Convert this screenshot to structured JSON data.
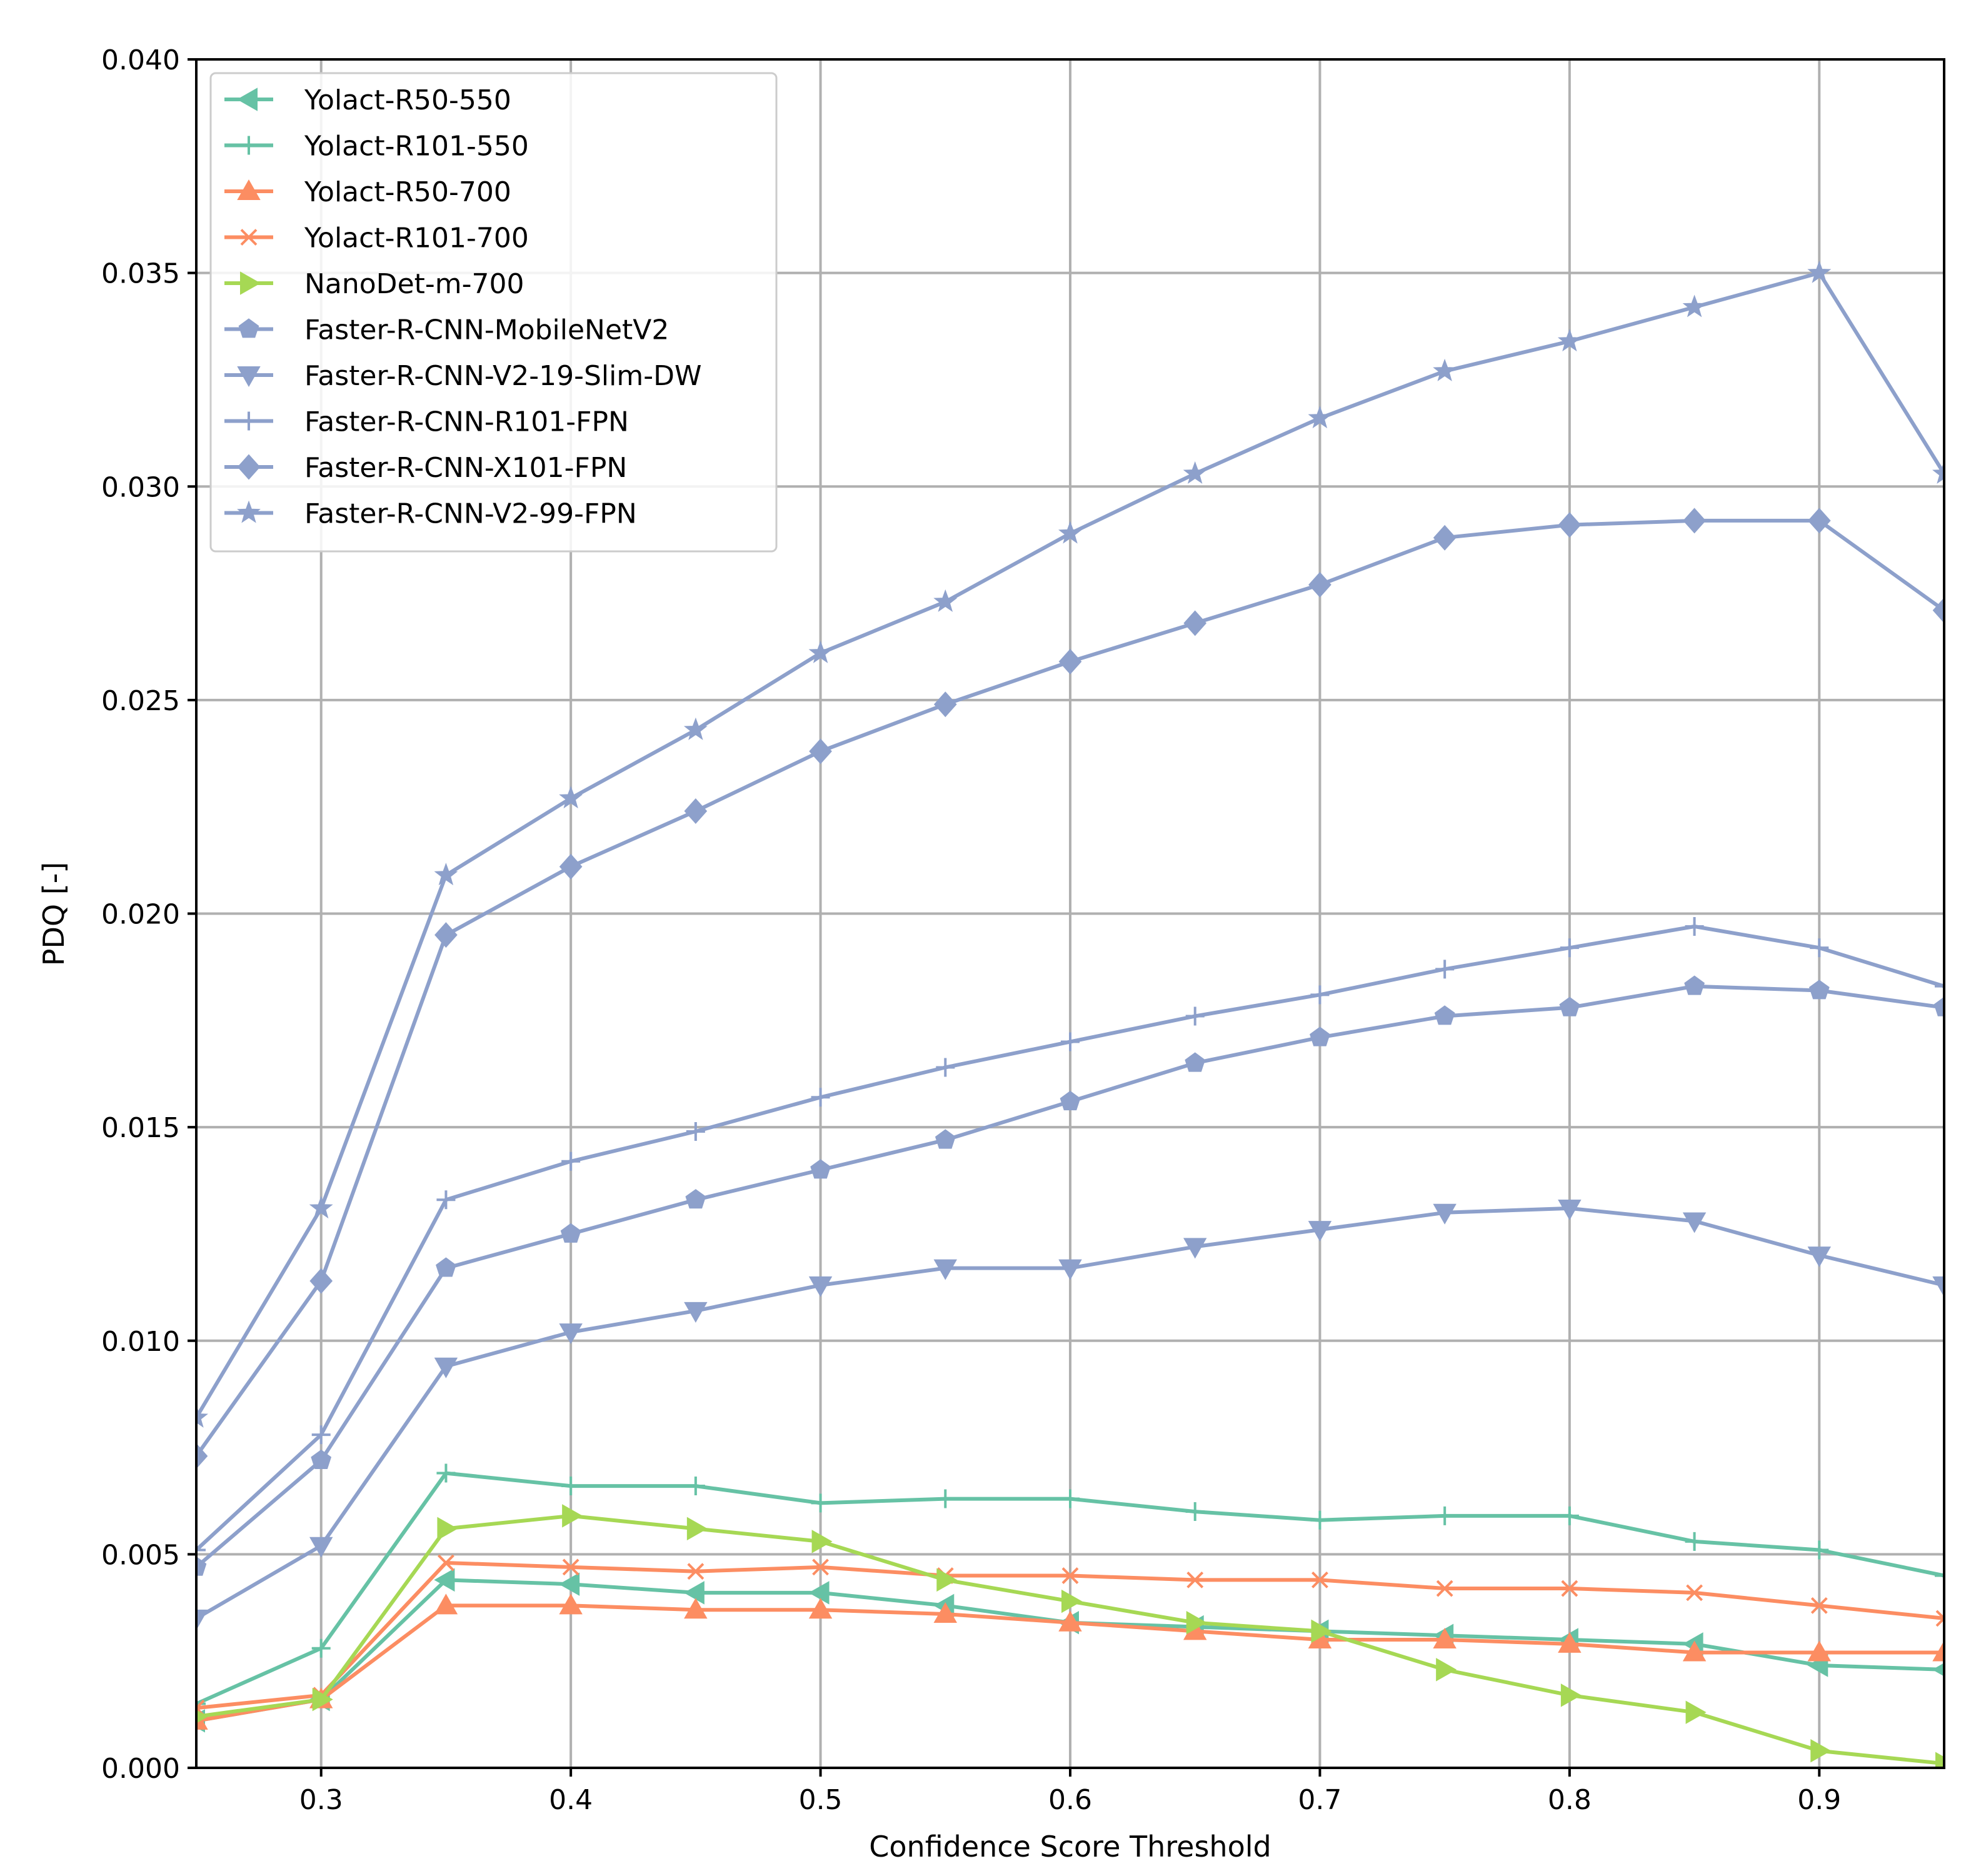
{
  "chart_data": {
    "type": "line",
    "title": "",
    "xlabel": "Confidence Score Threshold",
    "ylabel": "PDQ [-]",
    "xlim": [
      0.25,
      0.95
    ],
    "ylim": [
      0.0,
      0.04
    ],
    "grid": true,
    "legend_position": "top-left",
    "x": [
      0.25,
      0.3,
      0.35,
      0.4,
      0.45,
      0.5,
      0.55,
      0.6,
      0.65,
      0.7,
      0.75,
      0.8,
      0.85,
      0.9,
      0.95
    ],
    "x_ticks": [
      "0.3",
      "0.4",
      "0.5",
      "0.6",
      "0.7",
      "0.8",
      "0.9"
    ],
    "x_tick_values": [
      0.3,
      0.4,
      0.5,
      0.6,
      0.7,
      0.8,
      0.9
    ],
    "y_ticks": [
      "0.000",
      "0.005",
      "0.010",
      "0.015",
      "0.020",
      "0.025",
      "0.030",
      "0.035",
      "0.040"
    ],
    "y_tick_values": [
      0.0,
      0.005,
      0.01,
      0.015,
      0.02,
      0.025,
      0.03,
      0.035,
      0.04
    ],
    "series": [
      {
        "name": "Yolact-R50-550",
        "color": "#66c2a5",
        "marker": "triangle-left",
        "values": [
          0.0011,
          0.0016,
          0.0044,
          0.0043,
          0.0041,
          0.0041,
          0.0038,
          0.0034,
          0.0033,
          0.0032,
          0.0031,
          0.003,
          0.0029,
          0.0024,
          0.0023
        ]
      },
      {
        "name": "Yolact-R101-550",
        "color": "#66c2a5",
        "marker": "plus",
        "values": [
          0.0015,
          0.0028,
          0.0069,
          0.0066,
          0.0066,
          0.0062,
          0.0063,
          0.0063,
          0.006,
          0.0058,
          0.0059,
          0.0059,
          0.0053,
          0.0051,
          0.0045
        ]
      },
      {
        "name": "Yolact-R50-700",
        "color": "#fc8d62",
        "marker": "triangle-up",
        "values": [
          0.0011,
          0.0016,
          0.0038,
          0.0038,
          0.0037,
          0.0037,
          0.0036,
          0.0034,
          0.0032,
          0.003,
          0.003,
          0.0029,
          0.0027,
          0.0027,
          0.0027
        ]
      },
      {
        "name": "Yolact-R101-700",
        "color": "#fc8d62",
        "marker": "x",
        "values": [
          0.0014,
          0.0017,
          0.0048,
          0.0047,
          0.0046,
          0.0047,
          0.0045,
          0.0045,
          0.0044,
          0.0044,
          0.0042,
          0.0042,
          0.0041,
          0.0038,
          0.0035
        ]
      },
      {
        "name": "NanoDet-m-700",
        "color": "#a6d854",
        "marker": "triangle-right",
        "values": [
          0.0012,
          0.0016,
          0.0056,
          0.0059,
          0.0056,
          0.0053,
          0.0044,
          0.0039,
          0.0034,
          0.0032,
          0.0023,
          0.0017,
          0.0013,
          0.0004,
          0.0001
        ]
      },
      {
        "name": "Faster-R-CNN-MobileNetV2",
        "color": "#8da0cb",
        "marker": "pentagon",
        "values": [
          0.0047,
          0.0072,
          0.0117,
          0.0125,
          0.0133,
          0.014,
          0.0147,
          0.0156,
          0.0165,
          0.0171,
          0.0176,
          0.0178,
          0.0183,
          0.0182,
          0.0178
        ]
      },
      {
        "name": "Faster-R-CNN-V2-19-Slim-DW",
        "color": "#8da0cb",
        "marker": "triangle-down",
        "values": [
          0.0035,
          0.0052,
          0.0094,
          0.0102,
          0.0107,
          0.0113,
          0.0117,
          0.0117,
          0.0122,
          0.0126,
          0.013,
          0.0131,
          0.0128,
          0.012,
          0.0113
        ]
      },
      {
        "name": "Faster-R-CNN-R101-FPN",
        "color": "#8da0cb",
        "marker": "plus",
        "values": [
          0.0051,
          0.0078,
          0.0133,
          0.0142,
          0.0149,
          0.0157,
          0.0164,
          0.017,
          0.0176,
          0.0181,
          0.0187,
          0.0192,
          0.0197,
          0.0192,
          0.0183
        ]
      },
      {
        "name": "Faster-R-CNN-X101-FPN",
        "color": "#8da0cb",
        "marker": "diamond",
        "values": [
          0.0073,
          0.0114,
          0.0195,
          0.0211,
          0.0224,
          0.0238,
          0.0249,
          0.0259,
          0.0268,
          0.0277,
          0.0288,
          0.0291,
          0.0292,
          0.0292,
          0.0271
        ]
      },
      {
        "name": "Faster-R-CNN-V2-99-FPN",
        "color": "#8da0cb",
        "marker": "star",
        "values": [
          0.0082,
          0.0131,
          0.0209,
          0.0227,
          0.0243,
          0.0261,
          0.0273,
          0.0289,
          0.0303,
          0.0316,
          0.0327,
          0.0334,
          0.0342,
          0.035,
          0.0303
        ]
      }
    ]
  }
}
